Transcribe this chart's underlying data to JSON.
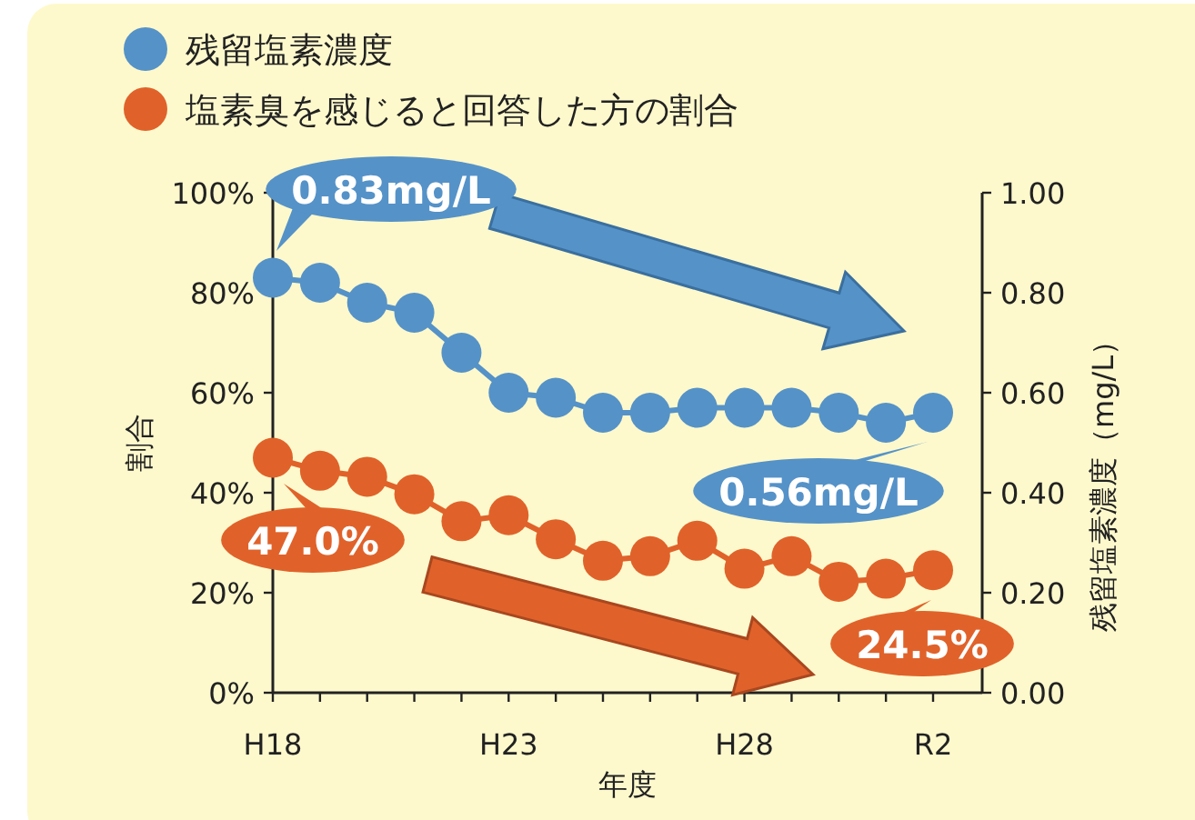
{
  "chart_data": {
    "type": "line",
    "xlabel": "年度",
    "ylabel": "割合",
    "y2label": "残留塩素濃度（mg/L）",
    "categories": [
      "H18",
      null,
      null,
      null,
      null,
      "H23",
      null,
      null,
      null,
      null,
      "H28",
      null,
      null,
      null,
      "R2"
    ],
    "series": [
      {
        "name": "残留塩素濃度",
        "color": "#5592c8",
        "axis": "y2",
        "values": [
          0.83,
          0.82,
          0.78,
          0.76,
          0.68,
          0.6,
          0.59,
          0.56,
          0.56,
          0.57,
          0.57,
          0.57,
          0.56,
          0.54,
          0.56
        ]
      },
      {
        "name": "塩素臭を感じると回答した方の割合",
        "color": "#e0622a",
        "values": [
          47.0,
          44.4,
          43.2,
          39.7,
          34.3,
          35.5,
          30.7,
          26.4,
          27.3,
          30.4,
          24.8,
          27.3,
          22.2,
          22.8,
          24.5
        ]
      }
    ],
    "ylim": [
      0,
      100
    ],
    "yticks": [
      {
        "value": 0,
        "label": "0%"
      },
      {
        "value": 20,
        "label": "20%"
      },
      {
        "value": 40,
        "label": "40%"
      },
      {
        "value": 60,
        "label": "60%"
      },
      {
        "value": 80,
        "label": "80%"
      },
      {
        "value": 100,
        "label": "100%"
      }
    ],
    "y2lim": [
      0,
      1
    ],
    "y2ticks": [
      {
        "value": 0,
        "label": "0.00"
      },
      {
        "value": 0.2,
        "label": "0.20"
      },
      {
        "value": 0.4,
        "label": "0.40"
      },
      {
        "value": 0.6,
        "label": "0.60"
      },
      {
        "value": 0.8,
        "label": "0.80"
      },
      {
        "value": 1,
        "label": "1.00"
      }
    ],
    "annotations": [
      "0.83mg/L",
      "0.56mg/L",
      "47.0%",
      "24.5%"
    ],
    "marker": "circle",
    "line_style": "solid",
    "grid": false,
    "legend": "top left"
  }
}
